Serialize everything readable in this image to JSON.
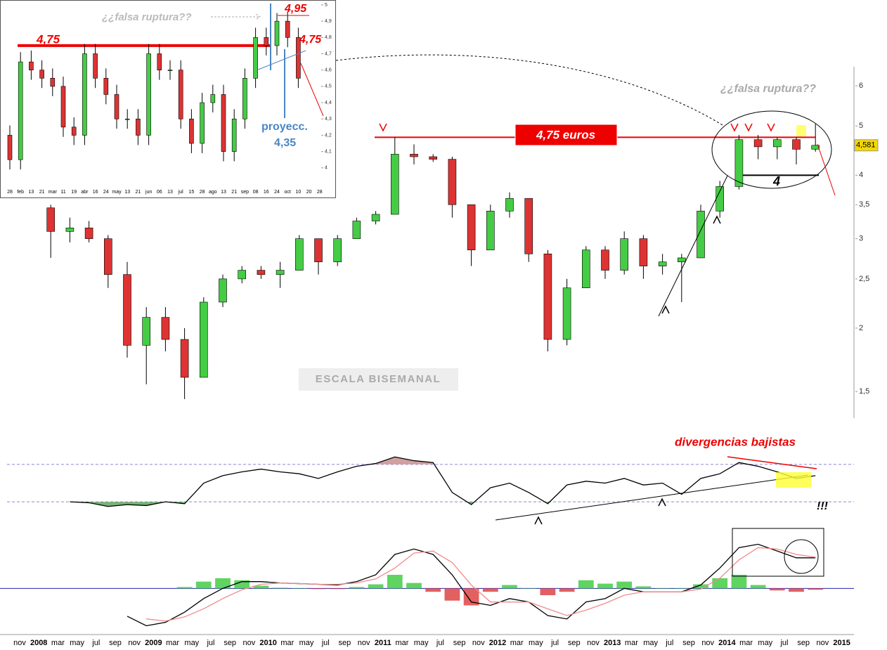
{
  "chart_data": [
    {
      "type": "candlestick",
      "log_scale": true,
      "up_color": "#44cc44",
      "down_color": "#dd3333",
      "categories": [
        "nov",
        "2008",
        "mar",
        "may",
        "jul",
        "sep",
        "nov",
        "2009",
        "mar",
        "may",
        "jul",
        "sep",
        "nov",
        "2010",
        "mar",
        "may",
        "jul",
        "sep",
        "nov",
        "2011",
        "mar",
        "may",
        "jul",
        "sep",
        "nov",
        "2012",
        "mar",
        "may",
        "jul",
        "sep",
        "nov",
        "2013",
        "mar",
        "may",
        "jul",
        "sep",
        "nov",
        "2014",
        "mar",
        "may",
        "jul",
        "sep",
        "nov",
        "2015"
      ],
      "open": [
        null,
        3.45,
        3.1,
        3.15,
        3.0,
        2.55,
        1.85,
        2.1,
        1.9,
        1.6,
        2.25,
        2.5,
        2.6,
        2.55,
        2.6,
        3.0,
        2.7,
        3.0,
        3.25,
        3.35,
        4.4,
        4.35,
        4.3,
        3.5,
        2.85,
        3.4,
        3.6,
        2.8,
        1.9,
        2.4,
        2.85,
        2.6,
        3.0,
        2.65,
        2.7,
        2.75,
        3.4,
        3.8,
        4.7,
        4.55,
        4.7,
        4.5,
        null,
        null
      ],
      "high": [
        null,
        3.5,
        3.3,
        3.25,
        3.05,
        2.7,
        2.2,
        2.2,
        2.0,
        2.3,
        2.55,
        2.65,
        2.65,
        2.7,
        3.05,
        3.0,
        3.05,
        3.3,
        3.4,
        4.75,
        4.6,
        4.4,
        4.35,
        3.5,
        3.5,
        3.7,
        3.6,
        2.85,
        2.5,
        2.9,
        2.9,
        3.1,
        3.05,
        2.8,
        2.8,
        3.5,
        3.9,
        4.8,
        4.8,
        4.75,
        4.75,
        5.05,
        null,
        null
      ],
      "low": [
        null,
        2.75,
        2.95,
        2.95,
        2.4,
        1.75,
        1.55,
        1.8,
        1.45,
        1.6,
        2.2,
        2.45,
        2.5,
        2.4,
        2.6,
        2.55,
        2.65,
        3.0,
        3.2,
        3.35,
        4.2,
        4.25,
        3.3,
        2.65,
        2.85,
        3.3,
        2.7,
        1.8,
        1.85,
        2.4,
        2.5,
        2.55,
        2.5,
        2.55,
        2.25,
        2.75,
        3.3,
        3.75,
        4.3,
        4.3,
        4.2,
        4.45,
        null,
        null
      ],
      "close": [
        null,
        3.1,
        3.15,
        3.0,
        2.55,
        1.85,
        2.1,
        1.9,
        1.6,
        2.25,
        2.5,
        2.6,
        2.55,
        2.6,
        3.0,
        2.7,
        3.0,
        3.25,
        3.35,
        4.4,
        4.35,
        4.3,
        3.5,
        2.85,
        3.4,
        3.6,
        2.8,
        1.9,
        2.4,
        2.85,
        2.6,
        3.0,
        2.65,
        2.7,
        2.75,
        3.4,
        3.8,
        4.7,
        4.55,
        4.7,
        4.5,
        4.58,
        null,
        null
      ],
      "ylim": [
        1.33,
        6.54
      ],
      "yticks": [
        6,
        5,
        4,
        {
          "value": 3.5,
          "label": "3,5"
        },
        3,
        {
          "value": 2.5,
          "label": "2,5"
        },
        2,
        {
          "value": 1.5,
          "label": "1,5"
        }
      ],
      "resistance": 4.75,
      "support": 4,
      "last_price": {
        "value": 4.581,
        "label": "4,581"
      },
      "annotations": [
        "¿¿falsa ruptura??",
        "4,75 euros",
        "ESCALA BISEMANAL"
      ]
    },
    {
      "type": "line",
      "ylim": [
        0,
        100
      ],
      "levels": [
        70,
        30
      ],
      "upper_fill": "#c98f8f",
      "lower_fill": "#5fa65f",
      "series": [
        {
          "color": "#000000",
          "values": [
            null,
            null,
            30,
            29,
            25,
            27,
            26,
            30,
            28,
            50,
            58,
            62,
            65,
            62,
            60,
            55,
            62,
            68,
            71,
            78,
            74,
            72,
            40,
            27,
            45,
            50,
            40,
            28,
            48,
            52,
            50,
            55,
            48,
            50,
            38,
            55,
            60,
            72,
            68,
            62,
            55,
            58,
            null,
            null
          ]
        }
      ],
      "annotations": [
        "divergencias bajistas",
        "!!!"
      ]
    },
    {
      "type": "line",
      "ylim": [
        -0.7,
        0.8
      ],
      "series": [
        {
          "color": "#000000",
          "values": [
            null,
            null,
            null,
            null,
            null,
            -0.41,
            -0.55,
            -0.5,
            -0.35,
            -0.15,
            0,
            0.1,
            0.1,
            0.08,
            0.07,
            0.06,
            0.05,
            0.1,
            0.2,
            0.5,
            0.58,
            0.5,
            0.2,
            -0.2,
            -0.25,
            -0.15,
            -0.2,
            -0.4,
            -0.45,
            -0.2,
            -0.15,
            0,
            -0.05,
            -0.05,
            -0.05,
            0.05,
            0.3,
            0.6,
            0.65,
            0.55,
            0.45,
            0.45,
            null,
            null
          ]
        },
        {
          "color": "#f08a8a",
          "values": [
            null,
            null,
            null,
            null,
            null,
            null,
            -0.45,
            -0.48,
            -0.42,
            -0.3,
            -0.15,
            -0.02,
            0.06,
            0.08,
            0.07,
            0.06,
            0.06,
            0.08,
            0.14,
            0.3,
            0.52,
            0.55,
            0.38,
            0.05,
            -0.2,
            -0.2,
            -0.2,
            -0.3,
            -0.4,
            -0.32,
            -0.22,
            -0.1,
            -0.05,
            -0.05,
            -0.05,
            -0.01,
            0.15,
            0.42,
            0.6,
            0.58,
            0.5,
            0.46,
            null,
            null
          ]
        }
      ],
      "histogram": {
        "up_color": "#44cc44",
        "down_color": "#dd4444",
        "values": [
          null,
          null,
          null,
          null,
          null,
          null,
          null,
          null,
          0.02,
          0.1,
          0.15,
          0.12,
          0.04,
          0.01,
          0,
          -0.01,
          -0.01,
          0.02,
          0.06,
          0.2,
          0.08,
          -0.05,
          -0.18,
          -0.25,
          -0.05,
          0.05,
          0,
          -0.1,
          -0.05,
          0.12,
          0.07,
          0.1,
          0.03,
          0,
          0,
          0.06,
          0.15,
          0.2,
          0.05,
          -0.03,
          -0.05,
          -0.02,
          null,
          null
        ]
      }
    },
    {
      "type": "candlestick",
      "up_color": "#44cc44",
      "down_color": "#dd3333",
      "categories": [
        "28",
        "feb",
        "13",
        "21",
        "mar",
        "11",
        "19",
        "abr",
        "16",
        "24",
        "may",
        "13",
        "21",
        "jun",
        "06",
        "13",
        "jul",
        "15",
        "28",
        "ago",
        "13",
        "21",
        "sep",
        "08",
        "16",
        "24",
        "oct",
        "10",
        "20",
        "28"
      ],
      "open": [
        4.2,
        4.05,
        4.65,
        4.6,
        4.55,
        4.5,
        4.25,
        4.2,
        4.7,
        4.55,
        4.45,
        4.3,
        4.3,
        4.2,
        4.7,
        4.6,
        4.6,
        4.3,
        4.15,
        4.4,
        4.45,
        4.1,
        4.3,
        4.55,
        4.8,
        4.75,
        4.9,
        4.8,
        null,
        null
      ],
      "high": [
        4.26,
        4.71,
        4.72,
        4.66,
        4.61,
        4.56,
        4.31,
        4.76,
        4.76,
        4.61,
        4.51,
        4.36,
        4.36,
        4.76,
        4.76,
        4.66,
        4.66,
        4.36,
        4.46,
        4.51,
        4.51,
        4.36,
        4.61,
        4.86,
        4.86,
        4.95,
        4.96,
        4.86,
        null,
        null
      ],
      "low": [
        3.99,
        3.99,
        4.54,
        4.49,
        4.44,
        4.19,
        4.14,
        4.14,
        4.49,
        4.39,
        4.24,
        4.24,
        4.14,
        4.14,
        4.54,
        4.54,
        4.24,
        4.09,
        4.09,
        4.34,
        4.04,
        4.04,
        4.24,
        4.49,
        4.69,
        4.69,
        4.74,
        4.49,
        null,
        null
      ],
      "close": [
        4.05,
        4.65,
        4.6,
        4.55,
        4.5,
        4.25,
        4.2,
        4.7,
        4.55,
        4.45,
        4.3,
        4.3,
        4.2,
        4.7,
        4.6,
        4.6,
        4.3,
        4.15,
        4.4,
        4.45,
        4.1,
        4.3,
        4.55,
        4.8,
        4.75,
        4.9,
        4.8,
        4.55,
        null,
        null
      ],
      "ylim": [
        3.9,
        5.03
      ],
      "yticks": [
        5,
        {
          "value": 4.9,
          "label": "4,9"
        },
        {
          "value": 4.8,
          "label": "4,8"
        },
        {
          "value": 4.7,
          "label": "4,7"
        },
        {
          "value": 4.6,
          "label": "4,6"
        },
        {
          "value": 4.5,
          "label": "4,5"
        },
        {
          "value": 4.4,
          "label": "4,4"
        },
        {
          "value": 4.3,
          "label": "4,3"
        },
        {
          "value": 4.2,
          "label": "4,2"
        },
        {
          "value": 4.1,
          "label": "4,1"
        },
        4
      ],
      "resistance": 4.75,
      "annotations": [
        "4,75",
        "¿¿falsa ruptura??",
        "4,95",
        "4,75",
        "proyecc.",
        "4,35"
      ]
    }
  ]
}
